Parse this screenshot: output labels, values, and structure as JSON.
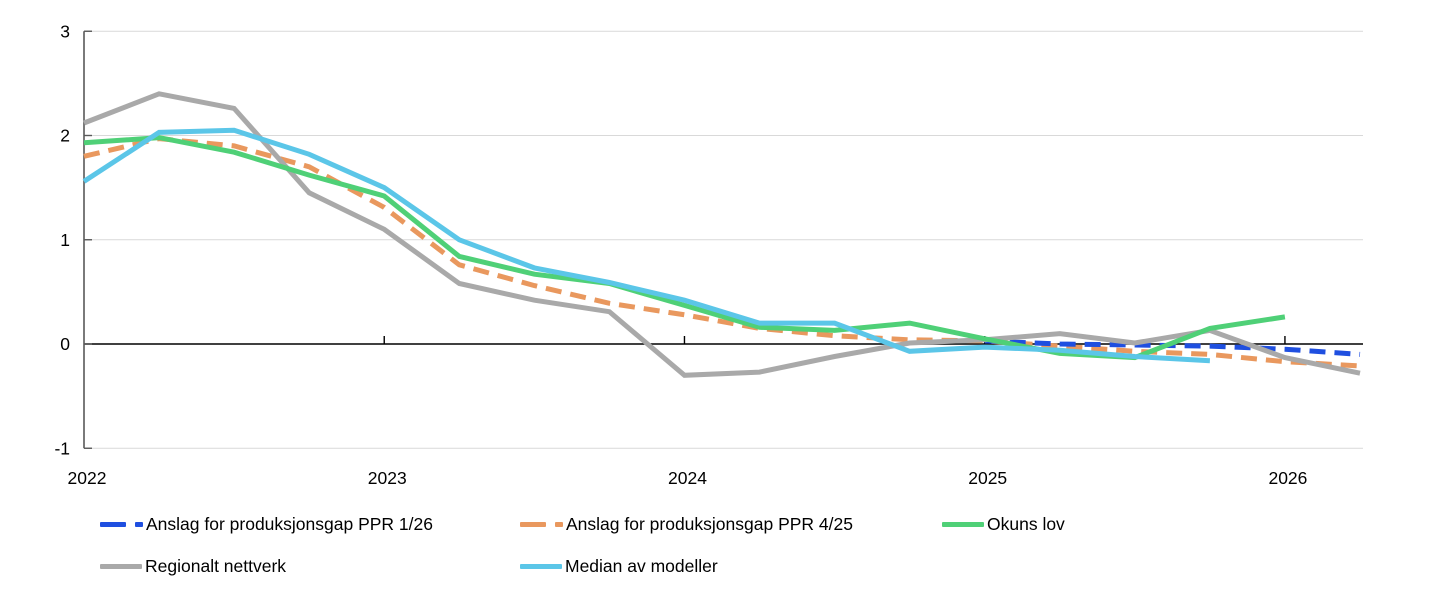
{
  "chart_data": {
    "type": "line",
    "title": "",
    "categories": [
      "2022Q1",
      "2022Q2",
      "2022Q3",
      "2022Q4",
      "2023Q1",
      "2023Q2",
      "2023Q3",
      "2023Q4",
      "2024Q1",
      "2024Q2",
      "2024Q3",
      "2024Q4",
      "2025Q1",
      "2025Q2",
      "2025Q3",
      "2025Q4",
      "2026Q1",
      "2026Q2"
    ],
    "x_axis": {
      "tick_labels": [
        "2022",
        "2023",
        "2024",
        "2025",
        "2026"
      ],
      "tick_quarter_index": [
        0,
        4,
        8,
        12,
        16
      ]
    },
    "y_axis": {
      "ticks": [
        3,
        2,
        1,
        0,
        -1
      ],
      "min": -1,
      "max": 3
    },
    "grid": {
      "gridline_color": "#d9d9d9",
      "zero_line_color": "#000000",
      "axis_line_color": "#595959",
      "text_color": "#000000"
    },
    "series": [
      {
        "name": "Anslag for produksjonsgap PPR 1/26",
        "color": "#1f4fe0",
        "style": "dashed",
        "start_index": 12,
        "values": [
          0.03,
          0.0,
          -0.01,
          -0.02,
          -0.05,
          -0.1
        ]
      },
      {
        "name": "Anslag for produksjonsgap PPR 4/25",
        "color": "#e9985e",
        "style": "dashed",
        "start_index": 0,
        "values": [
          1.8,
          1.97,
          1.9,
          1.7,
          1.31,
          0.76,
          0.56,
          0.39,
          0.28,
          0.15,
          0.08,
          0.04,
          0.03,
          -0.02,
          -0.07,
          -0.1,
          -0.17,
          -0.21
        ]
      },
      {
        "name": "Okuns lov",
        "color": "#4fd077",
        "style": "solid",
        "start_index": 0,
        "values": [
          1.93,
          1.98,
          1.84,
          1.62,
          1.42,
          0.84,
          0.67,
          0.58,
          0.37,
          0.16,
          0.13,
          0.2,
          0.05,
          -0.09,
          -0.13,
          0.15,
          0.26
        ]
      },
      {
        "name": "Regionalt nettverk",
        "color": "#a9a9a9",
        "style": "solid",
        "start_index": 0,
        "values": [
          2.12,
          2.4,
          2.26,
          1.45,
          1.1,
          0.58,
          0.42,
          0.31,
          -0.3,
          -0.27,
          -0.12,
          0.01,
          0.04,
          0.1,
          0.01,
          0.13,
          -0.13,
          -0.28
        ]
      },
      {
        "name": "Median av modeller",
        "color": "#5bc6e8",
        "style": "solid",
        "start_index": 0,
        "values": [
          1.56,
          2.03,
          2.05,
          1.82,
          1.5,
          1.0,
          0.73,
          0.59,
          0.42,
          0.2,
          0.2,
          -0.07,
          -0.03,
          -0.06,
          -0.12,
          -0.16
        ]
      }
    ],
    "draw_order": [
      1,
      0,
      3,
      2,
      4
    ],
    "legend_position": "bottom",
    "legend_rows": [
      [
        0,
        1,
        2
      ],
      [
        3,
        4
      ]
    ]
  }
}
